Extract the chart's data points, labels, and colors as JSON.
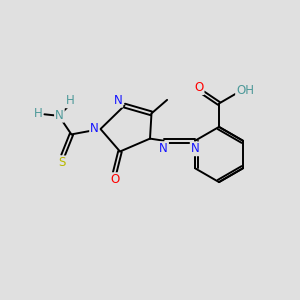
{
  "background_color": "#e0e0e0",
  "atom_colors": {
    "C": "#000000",
    "N": "#1414ff",
    "O": "#ff0000",
    "S": "#b8b800",
    "H": "#4d9999"
  },
  "bond_color": "#000000",
  "figsize": [
    3.0,
    3.0
  ],
  "dpi": 100,
  "font_size": 8.5
}
